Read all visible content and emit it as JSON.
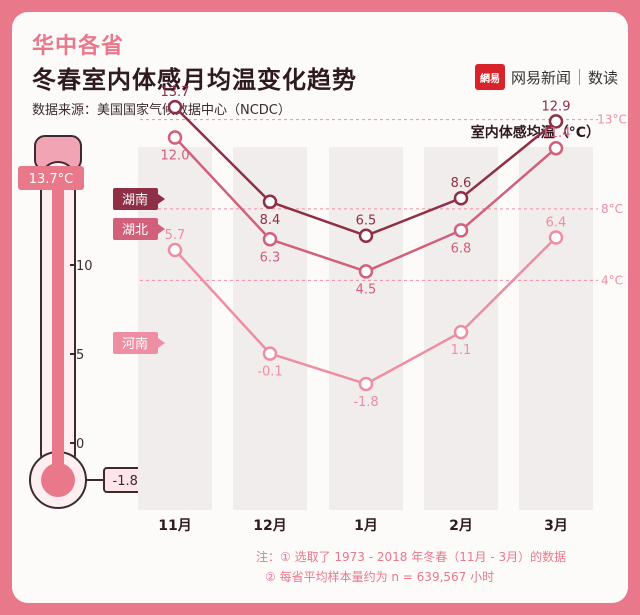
{
  "header": {
    "region": "华中各省",
    "title": "冬春室内体感月均温变化趋势",
    "source": "数据来源：美国国家气候数据中心（NCDC）",
    "brand_logo": "網易",
    "brand_name": "网易新闻",
    "brand_sub": "数读",
    "unit": "室内体感均温（°C）"
  },
  "thermometer": {
    "top_label": "13.7°C",
    "bottom_label": "-1.8°C",
    "ticks": [
      "10",
      "5",
      "0"
    ]
  },
  "notes": {
    "line1": "注：① 选取了 1973 - 2018 年冬春（11月 - 3月）的数据",
    "line2": "② 每省平均样本量约为 n = 639,567 小时"
  },
  "chart_data": {
    "type": "line",
    "categories": [
      "11月",
      "12月",
      "1月",
      "2月",
      "3月"
    ],
    "series": [
      {
        "name": "湖南",
        "values": [
          13.7,
          8.4,
          6.5,
          8.6,
          12.9
        ],
        "color": "#8e2f45"
      },
      {
        "name": "湖北",
        "values": [
          12.0,
          6.3,
          4.5,
          6.8,
          11.4
        ],
        "color": "#d2607a"
      },
      {
        "name": "河南",
        "values": [
          5.7,
          -0.1,
          -1.8,
          1.1,
          6.4
        ],
        "color": "#ee8ea2"
      }
    ],
    "reference_lines": [
      {
        "value": 13,
        "label": "13°C"
      },
      {
        "value": 8,
        "label": "8°C"
      },
      {
        "value": 4,
        "label": "4°C"
      }
    ],
    "ylabel": "室内体感均温（°C）",
    "legend": "left of lines"
  }
}
